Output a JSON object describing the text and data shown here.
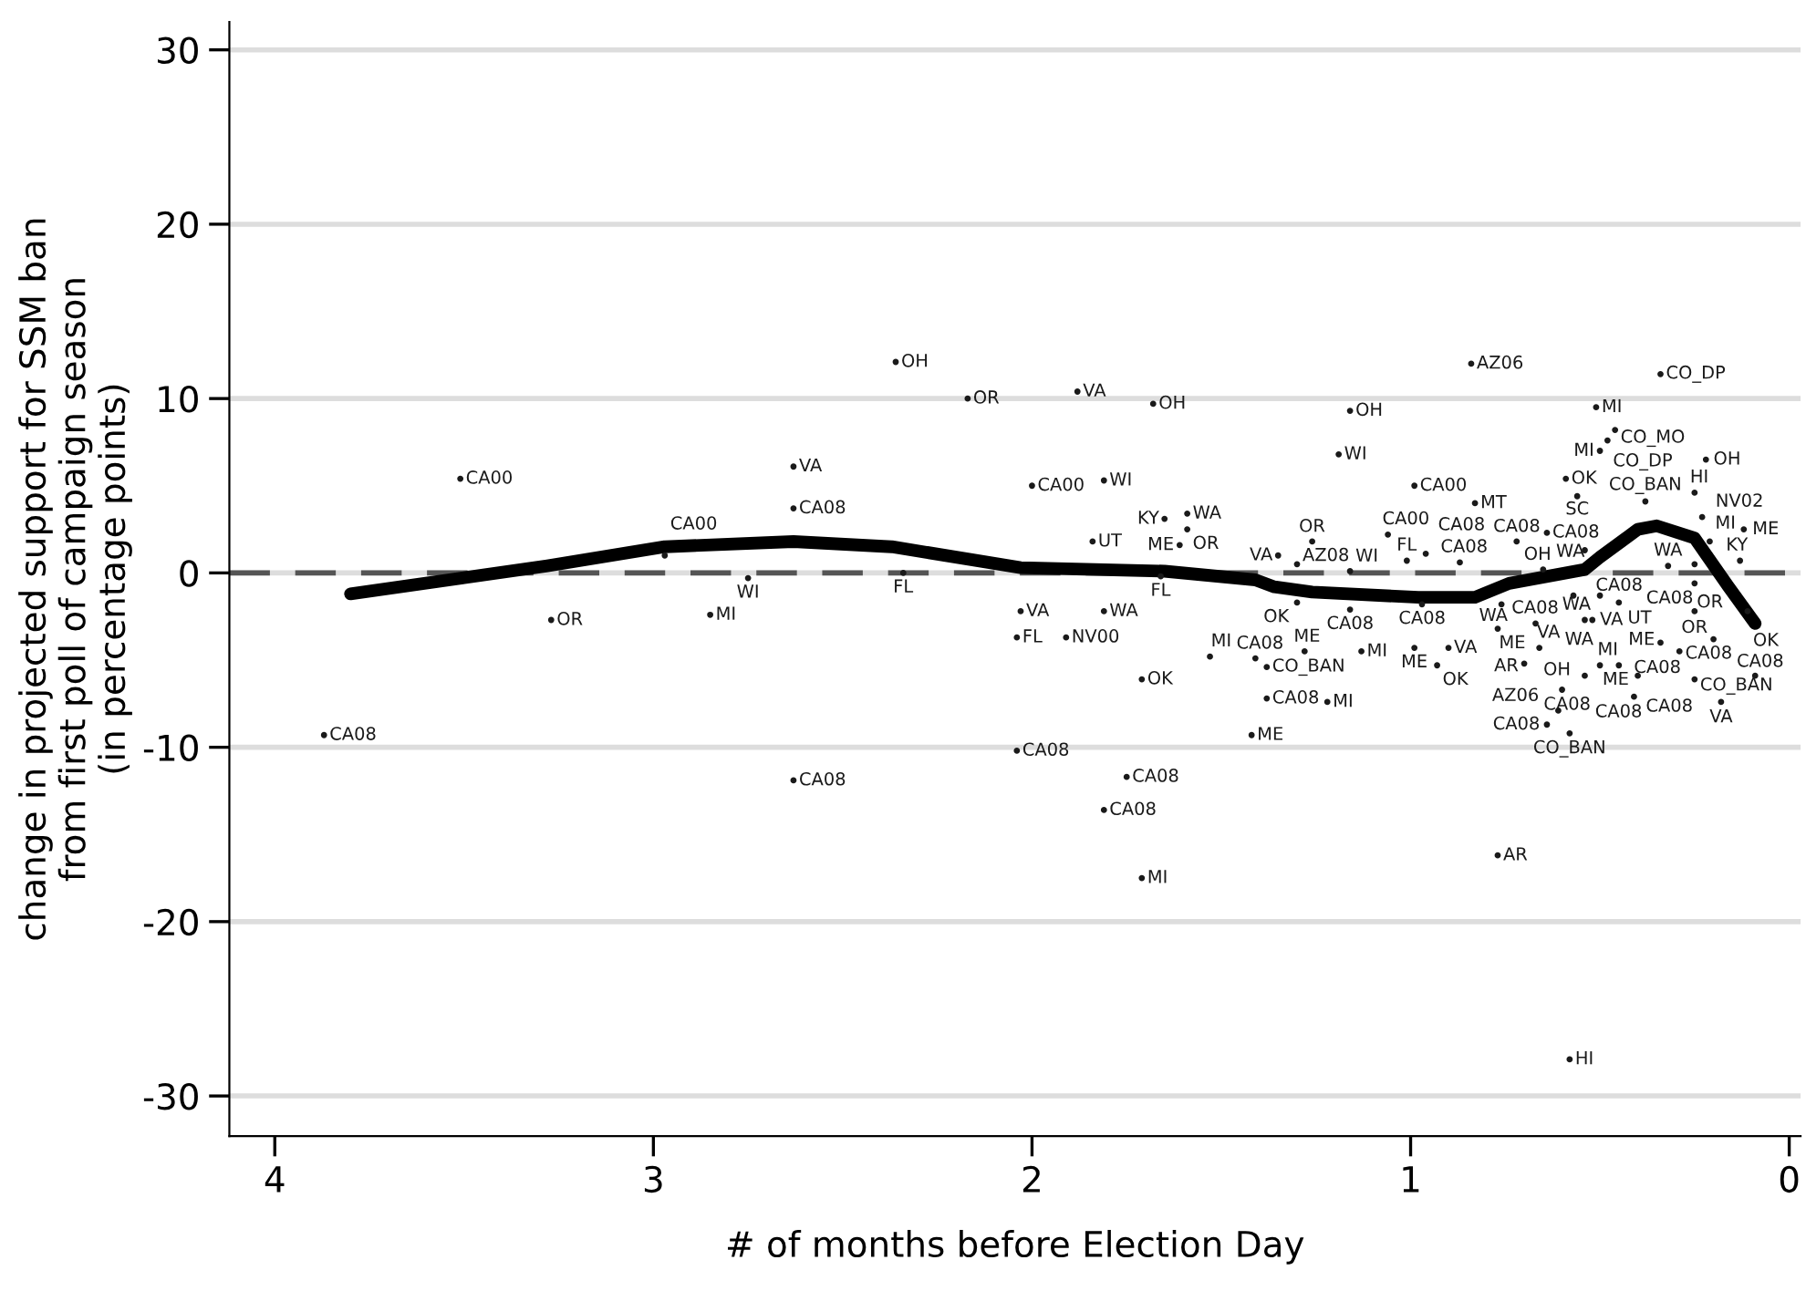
{
  "chart_data": {
    "type": "scatter",
    "xlabel": "# of months before Election Day",
    "ylabel": "change in projected support for SSM ban\nfrom first poll of campaign season\n(in percentage points)",
    "xlim": [
      4.12,
      -0.03
    ],
    "ylim": [
      -32.3,
      31.6
    ],
    "xticks": [
      4,
      3,
      2,
      1,
      0
    ],
    "yticks": [
      -30,
      -20,
      -10,
      0,
      10,
      20,
      30
    ],
    "grid": "y",
    "ref_lines": [
      {
        "axis": "y",
        "value": 0,
        "color": "#555555",
        "line_style": "dashed"
      }
    ],
    "series": [
      {
        "marker": "circle",
        "color": "#1a1a1a",
        "x": [
          3.87,
          3.51,
          3.27,
          2.97,
          2.85,
          2.75,
          2.63,
          2.63,
          2.63,
          2.36,
          2.34,
          2.17,
          1.88,
          1.68,
          2.0,
          1.81,
          1.84,
          1.65,
          1.59,
          1.59,
          1.61,
          1.66,
          2.03,
          2.04,
          1.91,
          1.81,
          1.71,
          2.04,
          1.75,
          1.81,
          1.71,
          1.53,
          1.41,
          1.38,
          1.28,
          1.38,
          1.22,
          1.42,
          1.35,
          1.3,
          1.26,
          1.16,
          1.3,
          1.16,
          1.13,
          0.99,
          1.06,
          1.16,
          1.19,
          0.84,
          0.83,
          0.97,
          0.96,
          1.01,
          0.87,
          0.72,
          0.64,
          0.99,
          0.9,
          0.93,
          0.76,
          0.77,
          0.67,
          0.66,
          0.7,
          0.65,
          0.59,
          0.56,
          0.51,
          0.46,
          0.48,
          0.5,
          0.34,
          0.22,
          0.25,
          0.12,
          0.21,
          0.13,
          0.38,
          0.23,
          0.54,
          0.25,
          0.32,
          0.11,
          0.25,
          0.2,
          0.34,
          0.29,
          0.5,
          0.45,
          0.4,
          0.25,
          0.09,
          0.18,
          0.41,
          0.6,
          0.54,
          0.61,
          0.64,
          0.58,
          0.77,
          0.58,
          0.57,
          0.5,
          0.54,
          0.52,
          0.45,
          0.25
        ],
        "values": [
          -9.3,
          5.4,
          -2.7,
          1.0,
          -2.4,
          -0.3,
          6.1,
          3.7,
          -11.9,
          12.1,
          0.0,
          10.0,
          10.4,
          9.7,
          5.0,
          5.3,
          1.8,
          3.1,
          3.4,
          2.5,
          1.6,
          -0.2,
          -2.2,
          -3.7,
          -3.7,
          -2.2,
          -6.1,
          -10.2,
          -11.7,
          -13.6,
          -17.5,
          -4.8,
          -4.9,
          -5.4,
          -4.5,
          -7.2,
          -7.4,
          -9.3,
          1.0,
          0.5,
          1.8,
          0.1,
          -1.7,
          -2.1,
          -4.5,
          5.0,
          2.2,
          9.3,
          6.8,
          12.0,
          4.0,
          -1.8,
          1.1,
          0.7,
          0.6,
          1.8,
          2.3,
          -4.3,
          -4.3,
          -5.3,
          -1.8,
          -3.2,
          -2.9,
          -4.3,
          -5.2,
          0.2,
          5.4,
          4.4,
          9.5,
          8.2,
          7.6,
          7.0,
          11.4,
          6.5,
          4.6,
          2.5,
          1.8,
          0.7,
          4.1,
          3.2,
          1.3,
          0.5,
          0.4,
          -2.2,
          -2.2,
          -3.8,
          -4.0,
          -4.5,
          -5.3,
          -5.3,
          -5.9,
          -6.1,
          -5.9,
          -7.4,
          -7.1,
          -6.7,
          -5.9,
          -7.9,
          -8.7,
          -9.2,
          -16.2,
          -27.9,
          -1.3,
          -1.3,
          -2.7,
          -2.7,
          -1.7,
          -0.6
        ],
        "value_labels": [
          "CA08",
          "CA00",
          "OR",
          "CA00",
          "MI",
          "WI",
          "VA",
          "CA08",
          "CA08",
          "OH",
          "FL",
          "OR",
          "VA",
          "OH",
          "CA00",
          "WI",
          "UT",
          "KY",
          "WA",
          "OR",
          "ME",
          "FL",
          "VA",
          "FL",
          "NV00",
          "WA",
          "OK",
          "CA08",
          "CA08",
          "CA08",
          "MI",
          "MI",
          "CA08",
          "CO_BAN",
          "ME",
          "CA08",
          "MI",
          "ME",
          "VA",
          "AZ08",
          "OR",
          "WI",
          "OK",
          "CA08",
          "MI",
          "CA00",
          "CA00",
          "OH",
          "WI",
          "AZ06",
          "MT",
          "CA08",
          "CA08",
          "FL",
          "CA08",
          "CA08",
          "CA08",
          "ME",
          "VA",
          "OK",
          "WA",
          "ME",
          "CA08",
          "VA",
          "AR",
          "OH",
          "OK",
          "SC",
          "MI",
          "CO_MO",
          "CO_DP",
          "MI",
          "CO_DP",
          "OH",
          "HI",
          "ME",
          "MI",
          "KY",
          "CO_BAN",
          "NV02",
          "WA",
          "OR",
          "WA",
          "OK",
          "OR",
          "CA08",
          "ME",
          "CA08",
          "MI",
          "ME",
          "CA08",
          "CO_BAN",
          "CA08",
          "VA",
          "CA08",
          "OH",
          "CA08",
          "AZ06",
          "CA08",
          "CO_BAN",
          "AR",
          "HI",
          "WA",
          "CA08",
          "WA",
          "VA",
          "UT",
          "CA08"
        ]
      },
      {
        "type": "line",
        "color": "#000000",
        "line_style": "solid",
        "x": [
          3.8,
          3.28,
          2.97,
          2.63,
          2.37,
          2.03,
          1.65,
          1.41,
          1.36,
          1.26,
          0.98,
          0.83,
          0.74,
          0.54,
          0.5,
          0.4,
          0.35,
          0.25,
          0.16,
          0.09
        ],
        "values": [
          -1.2,
          0.4,
          1.5,
          1.8,
          1.5,
          0.3,
          0.1,
          -0.4,
          -0.8,
          -1.1,
          -1.4,
          -1.4,
          -0.6,
          0.2,
          0.9,
          2.5,
          2.7,
          2.0,
          -0.8,
          -2.9
        ]
      }
    ]
  }
}
